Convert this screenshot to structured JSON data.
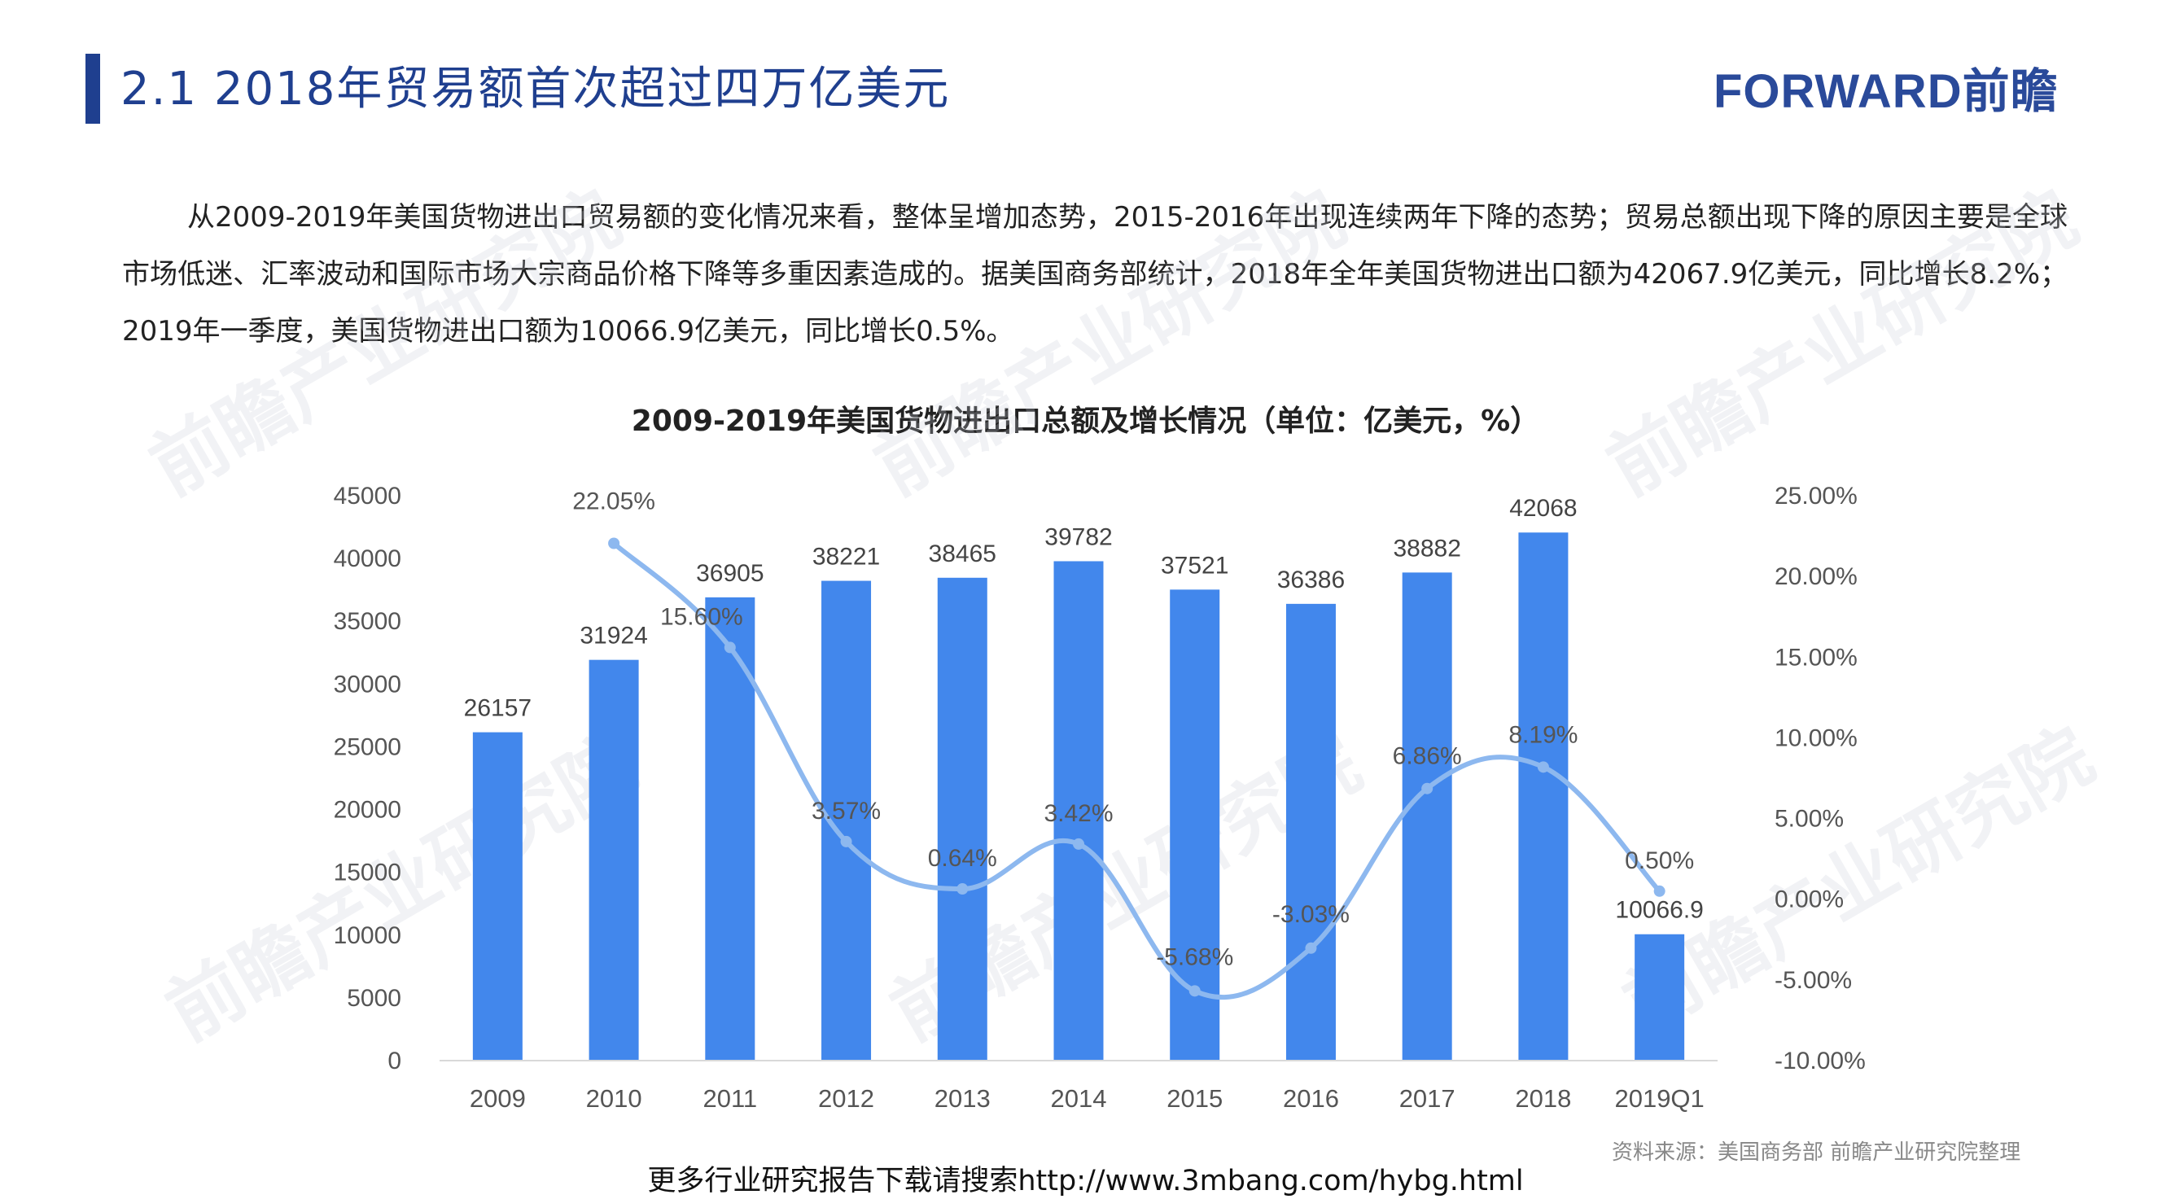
{
  "header": {
    "title": "2.1 2018年贸易额首次超过四万亿美元",
    "logo": "FORWARD前瞻"
  },
  "intro": {
    "text": "从2009-2019年美国货物进出口贸易额的变化情况来看，整体呈增加态势，2015-2016年出现连续两年下降的态势；贸易总额出现下降的原因主要是全球市场低迷、汇率波动和国际市场大宗商品价格下降等多重因素造成的。据美国商务部统计，2018年全年美国货物进出口额为42067.9亿美元，同比增长8.2%；2019年一季度，美国货物进出口额为10066.9亿美元，同比增长0.5%。"
  },
  "watermark": {
    "brand": "前瞻产业研究院"
  },
  "chart_data": {
    "type": "bar",
    "title": "2009-2019年美国货物进出口总额及增长情况（单位：亿美元，%）",
    "categories": [
      "2009",
      "2010",
      "2011",
      "2012",
      "2013",
      "2014",
      "2015",
      "2016",
      "2017",
      "2018",
      "2019Q1"
    ],
    "series": [
      {
        "type": "bar",
        "axis": "left",
        "values": [
          26157,
          31924,
          36905,
          38221,
          38465,
          39782,
          37521,
          36386,
          38882,
          42068,
          10066.9
        ],
        "labels": [
          "26157",
          "31924",
          "36905",
          "38221",
          "38465",
          "39782",
          "37521",
          "36386",
          "38882",
          "42068",
          "10066.9"
        ],
        "color": "#4287ec"
      },
      {
        "type": "line",
        "smooth": true,
        "axis": "right",
        "values": [
          null,
          22.05,
          15.6,
          3.57,
          0.64,
          3.42,
          -5.68,
          -3.03,
          6.86,
          8.19,
          0.5
        ],
        "labels": [
          "",
          "22.05%",
          "15.60%",
          "3.57%",
          "0.64%",
          "3.42%",
          "-5.68%",
          "-3.03%",
          "6.86%",
          "8.19%",
          "0.50%"
        ],
        "color": "#8db8ef"
      }
    ],
    "left_axis": {
      "ylim": [
        0,
        45000
      ],
      "ticks": [
        "0",
        "5000",
        "10000",
        "15000",
        "20000",
        "25000",
        "30000",
        "35000",
        "40000",
        "45000"
      ]
    },
    "right_axis": {
      "ylim": [
        -10,
        25
      ],
      "ticks": [
        "-10.00%",
        "-5.00%",
        "0.00%",
        "5.00%",
        "10.00%",
        "15.00%",
        "20.00%",
        "25.00%"
      ]
    },
    "grid": false,
    "legend": "none"
  },
  "source": "资料来源：美国商务部  前瞻产业研究院整理",
  "footer": "更多行业研究报告下载请搜索http://www.3mbang.com/hybg.html"
}
